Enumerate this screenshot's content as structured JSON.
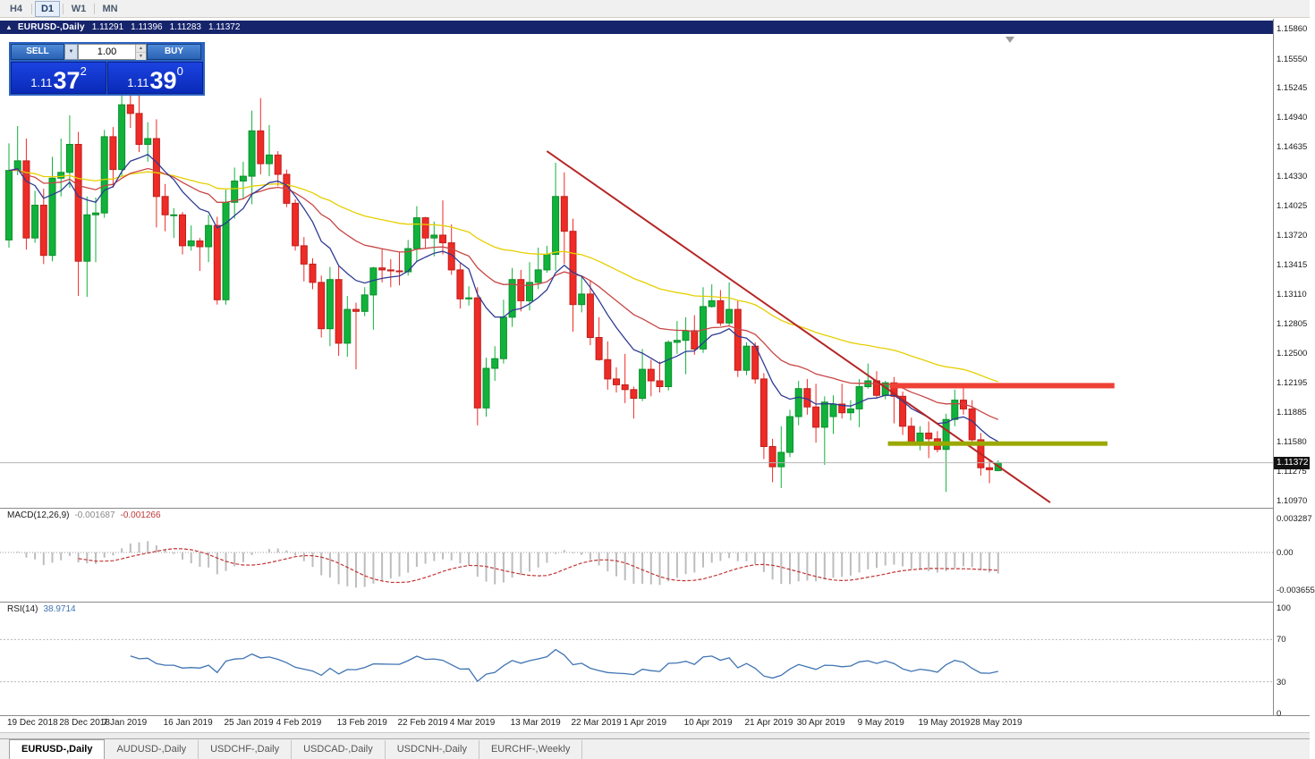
{
  "toolbar": {
    "timeframes": [
      {
        "label": "H4",
        "active": false
      },
      {
        "label": "D1",
        "active": true
      },
      {
        "label": "W1",
        "active": false
      },
      {
        "label": "MN",
        "active": false
      }
    ]
  },
  "title_bar": {
    "collapse_icon": "▲",
    "title": "EURUSD-,Daily",
    "open": "1.11291",
    "high": "1.11396",
    "low": "1.11283",
    "close": "1.11372"
  },
  "trade_panel": {
    "sell_label": "SELL",
    "buy_label": "BUY",
    "volume": "1.00",
    "sell_price": {
      "base": "1.11",
      "big": "37",
      "sup": "2"
    },
    "buy_price": {
      "base": "1.11",
      "big": "39",
      "sup": "0"
    }
  },
  "price_tag": "1.11372",
  "tabs": [
    {
      "label": "EURUSD-,Daily",
      "active": true
    },
    {
      "label": "AUDUSD-,Daily",
      "active": false
    },
    {
      "label": "USDCHF-,Daily",
      "active": false
    },
    {
      "label": "USDCAD-,Daily",
      "active": false
    },
    {
      "label": "USDCNH-,Daily",
      "active": false
    },
    {
      "label": "EURCHF-,Weekly",
      "active": false
    }
  ],
  "chart_data": {
    "type": "candlestick",
    "symbol": "EURUSD-",
    "timeframe": "Daily",
    "style": {
      "bull": "#11b23b",
      "bull_stroke": "#0b8f2b",
      "bear": "#ee2b26",
      "bear_stroke": "#bf1f1b",
      "macd_hist": "#bdbdbd",
      "macd_signal": "#c23535",
      "rsi_line": "#3f74b3"
    },
    "price_axis": {
      "tick_labels": [
        "1.15860",
        "1.15550",
        "1.15245",
        "1.14940",
        "1.14635",
        "1.14330",
        "1.14025",
        "1.13720",
        "1.13415",
        "1.13110",
        "1.12805",
        "1.12500",
        "1.12195",
        "1.11885",
        "1.11580",
        "1.11275",
        "1.10970"
      ]
    },
    "candles": [
      [
        "19 Dec",
        1.1368,
        1.1468,
        1.136,
        1.144
      ],
      [
        "20 Dec",
        1.144,
        1.1486,
        1.1435,
        1.145
      ],
      [
        "21 Dec",
        1.145,
        1.1473,
        1.1358,
        1.137
      ],
      [
        "24 Dec",
        1.137,
        1.1419,
        1.1365,
        1.1404
      ],
      [
        "26 Dec",
        1.1404,
        1.1421,
        1.1343,
        1.1352
      ],
      [
        "27 Dec",
        1.1352,
        1.1454,
        1.1346,
        1.1432
      ],
      [
        "28 Dec",
        1.1432,
        1.1473,
        1.1413,
        1.1438
      ],
      [
        "31 Dec",
        1.1438,
        1.1497,
        1.1422,
        1.1467
      ],
      [
        "2 Jan",
        1.1467,
        1.148,
        1.131,
        1.1346
      ],
      [
        "3 Jan",
        1.1346,
        1.1413,
        1.1309,
        1.1394
      ],
      [
        "4 Jan",
        1.1394,
        1.1412,
        1.1345,
        1.1396
      ],
      [
        "7 Jan",
        1.1396,
        1.1482,
        1.1391,
        1.1475
      ],
      [
        "8 Jan",
        1.1475,
        1.1485,
        1.1422,
        1.1441
      ],
      [
        "9 Jan",
        1.1441,
        1.152,
        1.1434,
        1.1508
      ],
      [
        "10 Jan",
        1.1508,
        1.1532,
        1.1484,
        1.1499
      ],
      [
        "11 Jan",
        1.1499,
        1.1521,
        1.1459,
        1.1467
      ],
      [
        "14 Jan",
        1.1467,
        1.149,
        1.1449,
        1.1473
      ],
      [
        "15 Jan",
        1.1473,
        1.1493,
        1.1381,
        1.1413
      ],
      [
        "16 Jan",
        1.1413,
        1.1426,
        1.1377,
        1.1394
      ],
      [
        "17 Jan",
        1.1394,
        1.1401,
        1.137,
        1.1394
      ],
      [
        "18 Jan",
        1.1394,
        1.1397,
        1.1353,
        1.1362
      ],
      [
        "21 Jan",
        1.1362,
        1.1383,
        1.1357,
        1.1367
      ],
      [
        "22 Jan",
        1.1367,
        1.137,
        1.1336,
        1.1361
      ],
      [
        "23 Jan",
        1.1361,
        1.1394,
        1.1345,
        1.1383
      ],
      [
        "24 Jan",
        1.1383,
        1.1392,
        1.1301,
        1.1306
      ],
      [
        "25 Jan",
        1.1306,
        1.142,
        1.1301,
        1.1407
      ],
      [
        "28 Jan",
        1.1407,
        1.1443,
        1.139,
        1.1429
      ],
      [
        "29 Jan",
        1.1429,
        1.1449,
        1.1411,
        1.1434
      ],
      [
        "30 Jan",
        1.1434,
        1.1502,
        1.1405,
        1.1481
      ],
      [
        "31 Jan",
        1.1481,
        1.1515,
        1.1436,
        1.1447
      ],
      [
        "1 Feb",
        1.1447,
        1.1487,
        1.1434,
        1.1456
      ],
      [
        "4 Feb",
        1.1456,
        1.146,
        1.1424,
        1.1436
      ],
      [
        "5 Feb",
        1.1436,
        1.1441,
        1.1402,
        1.1406
      ],
      [
        "6 Feb",
        1.1406,
        1.141,
        1.1357,
        1.1362
      ],
      [
        "7 Feb",
        1.1362,
        1.1371,
        1.1325,
        1.1343
      ],
      [
        "8 Feb",
        1.1343,
        1.1349,
        1.1317,
        1.1324
      ],
      [
        "11 Feb",
        1.1324,
        1.1331,
        1.1267,
        1.1276
      ],
      [
        "12 Feb",
        1.1276,
        1.134,
        1.1258,
        1.1327
      ],
      [
        "13 Feb",
        1.1327,
        1.1341,
        1.1248,
        1.1261
      ],
      [
        "14 Feb",
        1.1261,
        1.131,
        1.1247,
        1.1296
      ],
      [
        "15 Feb",
        1.1296,
        1.1303,
        1.1234,
        1.1294
      ],
      [
        "18 Feb",
        1.1294,
        1.1319,
        1.1289,
        1.1311
      ],
      [
        "19 Feb",
        1.1311,
        1.134,
        1.1275,
        1.1339
      ],
      [
        "20 Feb",
        1.1339,
        1.1359,
        1.1324,
        1.1337
      ],
      [
        "21 Feb",
        1.1337,
        1.1348,
        1.1319,
        1.1336
      ],
      [
        "22 Feb",
        1.1336,
        1.1355,
        1.1321,
        1.1335
      ],
      [
        "25 Feb",
        1.1335,
        1.1368,
        1.1331,
        1.1359
      ],
      [
        "26 Feb",
        1.1359,
        1.1403,
        1.1345,
        1.1391
      ],
      [
        "27 Feb",
        1.1391,
        1.1392,
        1.136,
        1.137
      ],
      [
        "28 Feb",
        1.137,
        1.1387,
        1.1351,
        1.1373
      ],
      [
        "1 Mar",
        1.1373,
        1.1409,
        1.1353,
        1.1365
      ],
      [
        "4 Mar",
        1.1365,
        1.1384,
        1.1332,
        1.1337
      ],
      [
        "5 Mar",
        1.1337,
        1.1344,
        1.1297,
        1.1307
      ],
      [
        "6 Mar",
        1.1307,
        1.132,
        1.13,
        1.1308
      ],
      [
        "7 Mar",
        1.1308,
        1.1319,
        1.1176,
        1.1194
      ],
      [
        "8 Mar",
        1.1194,
        1.1246,
        1.1185,
        1.1235
      ],
      [
        "11 Mar",
        1.1235,
        1.1258,
        1.1222,
        1.1245
      ],
      [
        "12 Mar",
        1.1245,
        1.1306,
        1.124,
        1.1288
      ],
      [
        "13 Mar",
        1.1288,
        1.1339,
        1.1278,
        1.1327
      ],
      [
        "14 Mar",
        1.1327,
        1.1337,
        1.1294,
        1.1305
      ],
      [
        "15 Mar",
        1.1305,
        1.1345,
        1.1295,
        1.1324
      ],
      [
        "18 Mar",
        1.1324,
        1.136,
        1.1317,
        1.1337
      ],
      [
        "19 Mar",
        1.1337,
        1.1362,
        1.1334,
        1.1353
      ],
      [
        "20 Mar",
        1.1353,
        1.1448,
        1.1336,
        1.1413
      ],
      [
        "21 Mar",
        1.1413,
        1.1438,
        1.1343,
        1.1377
      ],
      [
        "22 Mar",
        1.1377,
        1.139,
        1.1273,
        1.1301
      ],
      [
        "25 Mar",
        1.1301,
        1.133,
        1.1293,
        1.1312
      ],
      [
        "26 Mar",
        1.1312,
        1.1326,
        1.1259,
        1.1267
      ],
      [
        "27 Mar",
        1.1267,
        1.1288,
        1.1243,
        1.1244
      ],
      [
        "28 Mar",
        1.1244,
        1.1263,
        1.1213,
        1.1224
      ],
      [
        "29 Mar",
        1.1224,
        1.1236,
        1.121,
        1.1218
      ],
      [
        "1 Apr",
        1.1218,
        1.125,
        1.1199,
        1.1213
      ],
      [
        "2 Apr",
        1.1213,
        1.1216,
        1.1183,
        1.1204
      ],
      [
        "3 Apr",
        1.1204,
        1.1255,
        1.1201,
        1.1234
      ],
      [
        "4 Apr",
        1.1234,
        1.1244,
        1.1206,
        1.1222
      ],
      [
        "5 Apr",
        1.1222,
        1.1242,
        1.121,
        1.1216
      ],
      [
        "8 Apr",
        1.1216,
        1.1264,
        1.1212,
        1.1262
      ],
      [
        "9 Apr",
        1.1262,
        1.1284,
        1.125,
        1.1264
      ],
      [
        "10 Apr",
        1.1264,
        1.1288,
        1.1229,
        1.1274
      ],
      [
        "11 Apr",
        1.1274,
        1.129,
        1.1249,
        1.1255
      ],
      [
        "12 Apr",
        1.1255,
        1.1319,
        1.1251,
        1.1299
      ],
      [
        "15 Apr",
        1.1299,
        1.1322,
        1.1298,
        1.1305
      ],
      [
        "16 Apr",
        1.1305,
        1.1316,
        1.1279,
        1.1282
      ],
      [
        "17 Apr",
        1.1282,
        1.1324,
        1.1279,
        1.1296
      ],
      [
        "18 Apr",
        1.1296,
        1.1305,
        1.1226,
        1.1233
      ],
      [
        "22 Apr",
        1.1233,
        1.1262,
        1.1228,
        1.1258
      ],
      [
        "23 Apr",
        1.1258,
        1.1262,
        1.1219,
        1.1224
      ],
      [
        "24 Apr",
        1.1224,
        1.123,
        1.1141,
        1.1154
      ],
      [
        "25 Apr",
        1.1154,
        1.1162,
        1.1117,
        1.1133
      ],
      [
        "26 Apr",
        1.1133,
        1.1175,
        1.1111,
        1.1148
      ],
      [
        "29 Apr",
        1.1148,
        1.1192,
        1.1143,
        1.1185
      ],
      [
        "30 Apr",
        1.1185,
        1.1222,
        1.1176,
        1.1214
      ],
      [
        "1 May",
        1.1214,
        1.1224,
        1.1187,
        1.1195
      ],
      [
        "2 May",
        1.1195,
        1.1219,
        1.1158,
        1.1174
      ],
      [
        "3 May",
        1.1174,
        1.1206,
        1.1135,
        1.12
      ],
      [
        "6 May",
        1.1185,
        1.1207,
        1.1167,
        1.1198
      ],
      [
        "7 May",
        1.1198,
        1.1219,
        1.1183,
        1.1189
      ],
      [
        "8 May",
        1.1189,
        1.1202,
        1.1181,
        1.1193
      ],
      [
        "9 May",
        1.1193,
        1.1224,
        1.1174,
        1.1216
      ],
      [
        "10 May",
        1.1216,
        1.124,
        1.1214,
        1.1222
      ],
      [
        "13 May",
        1.1222,
        1.1232,
        1.1205,
        1.1207
      ],
      [
        "14 May",
        1.1207,
        1.1222,
        1.1203,
        1.122
      ],
      [
        "15 May",
        1.122,
        1.1226,
        1.1178,
        1.1206
      ],
      [
        "16 May",
        1.1206,
        1.1211,
        1.1166,
        1.1175
      ],
      [
        "17 May",
        1.1175,
        1.1184,
        1.1155,
        1.1159
      ],
      [
        "20 May",
        1.1159,
        1.1175,
        1.115,
        1.1168
      ],
      [
        "21 May",
        1.1168,
        1.118,
        1.1142,
        1.1162
      ],
      [
        "22 May",
        1.1162,
        1.117,
        1.1148,
        1.1151
      ],
      [
        "23 May",
        1.1151,
        1.1188,
        1.1107,
        1.1182
      ],
      [
        "24 May",
        1.1182,
        1.1213,
        1.1175,
        1.1202
      ],
      [
        "27 May",
        1.1202,
        1.1215,
        1.1187,
        1.1193
      ],
      [
        "28 May",
        1.1193,
        1.1202,
        1.1159,
        1.1161
      ],
      [
        "29 May",
        1.1161,
        1.1168,
        1.1124,
        1.1132
      ],
      [
        "30 May",
        1.1132,
        1.114,
        1.1116,
        1.113
      ],
      [
        "31 May",
        1.11291,
        1.11396,
        1.11283,
        1.11372
      ]
    ],
    "overlays": {
      "moving_averages": [
        {
          "name": "slow-ma",
          "period": 55,
          "type": "ema",
          "color": "#e6cf00"
        },
        {
          "name": "medium-ma",
          "period": 25,
          "type": "ema",
          "color": "#c84545"
        },
        {
          "name": "fast-ma",
          "period": 10,
          "type": "ema",
          "color": "#2e3b93"
        }
      ],
      "trendline": {
        "color": "#b52525",
        "from": {
          "index": 62,
          "price": 1.146
        },
        "to": {
          "index": 120,
          "price": 1.1096
        }
      },
      "bands": [
        {
          "name": "resistance-level",
          "price": 1.1217,
          "from_index": 101.5,
          "to_index": 127.4,
          "thickness": 6,
          "color": "#ef4136"
        },
        {
          "name": "support-level",
          "price": 1.1157,
          "from_index": 101.3,
          "to_index": 126.6,
          "thickness": 5,
          "color": "#9aa800"
        }
      ],
      "current_price": 1.11372
    },
    "indicators": {
      "macd": {
        "name": "MACD(12,26,9)",
        "value1": "-0.001687",
        "value2": "-0.001266",
        "params": [
          12,
          26,
          9
        ],
        "scale_labels": [
          "0.003287",
          "0.00",
          "-0.003655"
        ]
      },
      "rsi": {
        "name": "RSI(14)",
        "value": "38.9714",
        "period": 14,
        "levels": [
          70,
          30
        ],
        "scale_labels": [
          "100",
          "70",
          "30",
          "0"
        ]
      }
    },
    "time_labels": [
      {
        "text": "19 Dec 2018",
        "index": 0
      },
      {
        "text": "28 Dec 2018",
        "index": 6
      },
      {
        "text": "7 Jan 2019",
        "index": 11
      },
      {
        "text": "16 Jan 2019",
        "index": 18
      },
      {
        "text": "25 Jan 2019",
        "index": 25
      },
      {
        "text": "4 Feb 2019",
        "index": 31
      },
      {
        "text": "13 Feb 2019",
        "index": 38
      },
      {
        "text": "22 Feb 2019",
        "index": 45
      },
      {
        "text": "4 Mar 2019",
        "index": 51
      },
      {
        "text": "13 Mar 2019",
        "index": 58
      },
      {
        "text": "22 Mar 2019",
        "index": 65
      },
      {
        "text": "1 Apr 2019",
        "index": 71
      },
      {
        "text": "10 Apr 2019",
        "index": 78
      },
      {
        "text": "21 Apr 2019",
        "index": 85
      },
      {
        "text": "30 Apr 2019",
        "index": 91
      },
      {
        "text": "9 May 2019",
        "index": 98
      },
      {
        "text": "19 May 2019",
        "index": 105
      },
      {
        "text": "28 May 2019",
        "index": 111
      }
    ]
  }
}
